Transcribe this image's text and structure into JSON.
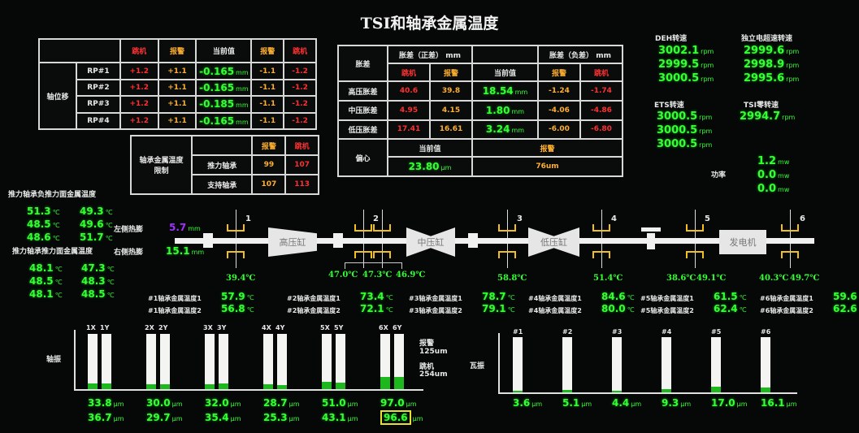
{
  "title": "TSI和轴承金属温度",
  "axial": {
    "group_label": "轴位移",
    "headers": [
      "跳机",
      "报警",
      "当前值",
      "报警",
      "跳机"
    ],
    "rows": [
      {
        "name": "RP#1",
        "trip_pos": "+1.2",
        "alarm_pos": "+1.1",
        "value": "-0.165",
        "unit": "mm",
        "alarm_neg": "-1.1",
        "trip_neg": "-1.2"
      },
      {
        "name": "RP#2",
        "trip_pos": "+1.2",
        "alarm_pos": "+1.1",
        "value": "-0.165",
        "unit": "mm",
        "alarm_neg": "-1.1",
        "trip_neg": "-1.2"
      },
      {
        "name": "RP#3",
        "trip_pos": "+1.2",
        "alarm_pos": "+1.1",
        "value": "-0.185",
        "unit": "mm",
        "alarm_neg": "-1.1",
        "trip_neg": "-1.2"
      },
      {
        "name": "RP#4",
        "trip_pos": "+1.2",
        "alarm_pos": "+1.1",
        "value": "-0.165",
        "unit": "mm",
        "alarm_neg": "-1.1",
        "trip_neg": "-1.2"
      }
    ]
  },
  "temp_limit": {
    "label": "轴承金属温度限制",
    "alarm": "报警",
    "trip": "跳机",
    "rows": [
      {
        "name": "推力轴承",
        "alarm": "99",
        "trip": "107"
      },
      {
        "name": "支持轴承",
        "alarm": "107",
        "trip": "113"
      }
    ]
  },
  "diff_exp": {
    "label": "胀差",
    "pos_header": "胀差（正差）",
    "neg_header": "胀差（负差）",
    "unit": "mm",
    "trip": "跳机",
    "alarm": "报警",
    "current": "当前值",
    "rows": [
      {
        "name": "高压胀差",
        "trip_pos": "40.6",
        "alarm_pos": "39.8",
        "value": "18.54",
        "unit": "mm",
        "alarm_neg": "-1.24",
        "trip_neg": "-1.74"
      },
      {
        "name": "中压胀差",
        "trip_pos": "4.95",
        "alarm_pos": "4.15",
        "value": "1.80",
        "unit": "mm",
        "alarm_neg": "-4.06",
        "trip_neg": "-4.86"
      },
      {
        "name": "低压胀差",
        "trip_pos": "17.41",
        "alarm_pos": "16.61",
        "value": "3.24",
        "unit": "mm",
        "alarm_neg": "-6.00",
        "trip_neg": "-6.80"
      }
    ],
    "eccentric": {
      "label": "偏心",
      "current_label": "当前值",
      "alarm_label": "报警",
      "value": "23.80",
      "unit": "μm",
      "alarm": "76um"
    }
  },
  "speeds": {
    "deh": {
      "label": "DEH转速",
      "values": [
        "3002.1",
        "2999.5",
        "3000.5"
      ]
    },
    "independent": {
      "label": "独立电超速转速",
      "values": [
        "2999.6",
        "2998.9",
        "2995.6"
      ]
    },
    "ets": {
      "label": "ETS转速",
      "values": [
        "3000.5",
        "3000.5",
        "3000.5"
      ]
    },
    "tsi_zero": {
      "label": "TSI零转速",
      "values": [
        "2994.7"
      ]
    },
    "unit": "rpm"
  },
  "power": {
    "label": "功率",
    "values": [
      "1.2",
      "0.0",
      "0.0"
    ],
    "unit": "mw"
  },
  "thrust": {
    "neg_label": "推力轴承负推力面金属温度",
    "neg_values": [
      "51.3",
      "48.5",
      "48.6",
      "49.3",
      "49.6",
      "51.7"
    ],
    "pos_label": "推力轴承推力面金属温度",
    "pos_values": [
      "48.1",
      "48.5",
      "48.1",
      "47.3",
      "48.3",
      "48.5"
    ],
    "unit": "℃"
  },
  "thermal_exp": {
    "left_label": "左侧热膨",
    "right_label": "右侧热膨",
    "left": "5.7",
    "right": "15.1",
    "unit": "mm"
  },
  "casings": {
    "hp": "高压缸",
    "ip": "中压缸",
    "lp": "低压缸",
    "gen": "发电机"
  },
  "bearing_nums": [
    "1",
    "2",
    "3",
    "4",
    "5",
    "6"
  ],
  "drain_temps": [
    "39.4",
    "47.0",
    "47.3",
    "46.9",
    "58.8",
    "51.4",
    "38.6",
    "49.1",
    "40.3",
    "49.7"
  ],
  "bearing_metal": [
    {
      "l1": "#1轴承金属温度1",
      "v1": "57.9",
      "l2": "#1轴承金属温度2",
      "v2": "56.8"
    },
    {
      "l1": "#2轴承金属温度1",
      "v1": "73.4",
      "l2": "#2轴承金属温度2",
      "v2": "72.1"
    },
    {
      "l1": "#3轴承金属温度1",
      "v1": "78.7",
      "l2": "#3轴承金属温度2",
      "v2": "79.1"
    },
    {
      "l1": "#4轴承金属温度1",
      "v1": "84.6",
      "l2": "#4轴承金属温度2",
      "v2": "80.0"
    },
    {
      "l1": "#5轴承金属温度1",
      "v1": "61.5",
      "l2": "#5轴承金属温度2",
      "v2": "62.4"
    },
    {
      "l1": "#6轴承金属温度1",
      "v1": "59.6",
      "l2": "#6轴承金属温度2",
      "v2": "62.6"
    }
  ],
  "shaft_vib": {
    "label": "轴振",
    "unit": "μm",
    "alarm_label": "报警",
    "alarm_value": "125um",
    "trip_label": "跳机",
    "trip_value": "254um",
    "pairs": [
      {
        "x": "1X",
        "y": "1Y",
        "xv": 33.8,
        "yv": 36.7
      },
      {
        "x": "2X",
        "y": "2Y",
        "xv": 30.0,
        "yv": 29.7
      },
      {
        "x": "3X",
        "y": "3Y",
        "xv": 32.0,
        "yv": 35.4
      },
      {
        "x": "4X",
        "y": "4Y",
        "xv": 28.7,
        "yv": 25.3
      },
      {
        "x": "5X",
        "y": "5Y",
        "xv": 51.0,
        "yv": 43.1
      },
      {
        "x": "6X",
        "y": "6Y",
        "xv": 97.0,
        "yv": 96.6
      }
    ]
  },
  "bearing_vib": {
    "label": "瓦振",
    "unit": "μm",
    "items": [
      {
        "n": "#1",
        "v": 3.6
      },
      {
        "n": "#2",
        "v": 5.1
      },
      {
        "n": "#3",
        "v": 4.4
      },
      {
        "n": "#4",
        "v": 9.3
      },
      {
        "n": "#5",
        "v": 17.0
      },
      {
        "n": "#6",
        "v": 16.1
      }
    ]
  },
  "colors": {
    "background": "#050807",
    "value_green": "#33ff33",
    "trip_red": "#ff3030",
    "alarm_orange": "#ffb030",
    "bearing_yellow": "#f0c020",
    "thermal_left_purple": "#a030ff"
  }
}
